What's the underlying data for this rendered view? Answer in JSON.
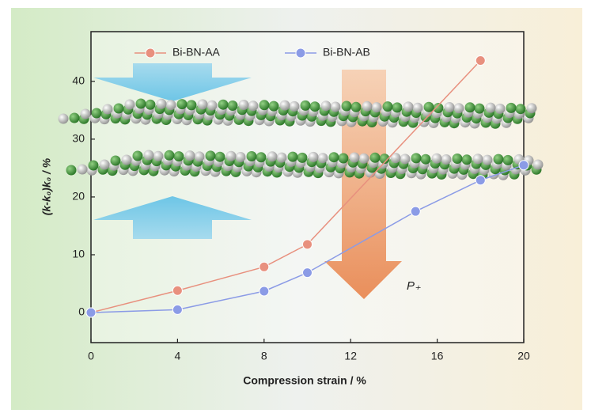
{
  "chart_data": {
    "type": "line",
    "xlabel": "Compression strain / %",
    "ylabel": "(k-k₀)k₀ / %",
    "annotation": "P₊",
    "legend": "top",
    "grid": false,
    "xlim": [
      0,
      20
    ],
    "xticks": [
      0,
      4,
      8,
      12,
      16,
      20
    ],
    "ylim": [
      -5.2,
      48.6
    ],
    "yticks": [
      0,
      10,
      20,
      30,
      40
    ],
    "series": [
      {
        "name": "Bi-BN-AA",
        "color": "#e8907e",
        "x": [
          0,
          4,
          8,
          10,
          18
        ],
        "values": [
          0,
          3.8,
          7.9,
          11.8,
          43.6
        ]
      },
      {
        "name": "Bi-BN-AB",
        "color": "#8b9be6",
        "x": [
          0,
          4,
          8,
          10,
          15,
          18,
          20
        ],
        "values": [
          0,
          0.5,
          3.7,
          6.9,
          17.5,
          22.9,
          25.5
        ]
      }
    ]
  }
}
